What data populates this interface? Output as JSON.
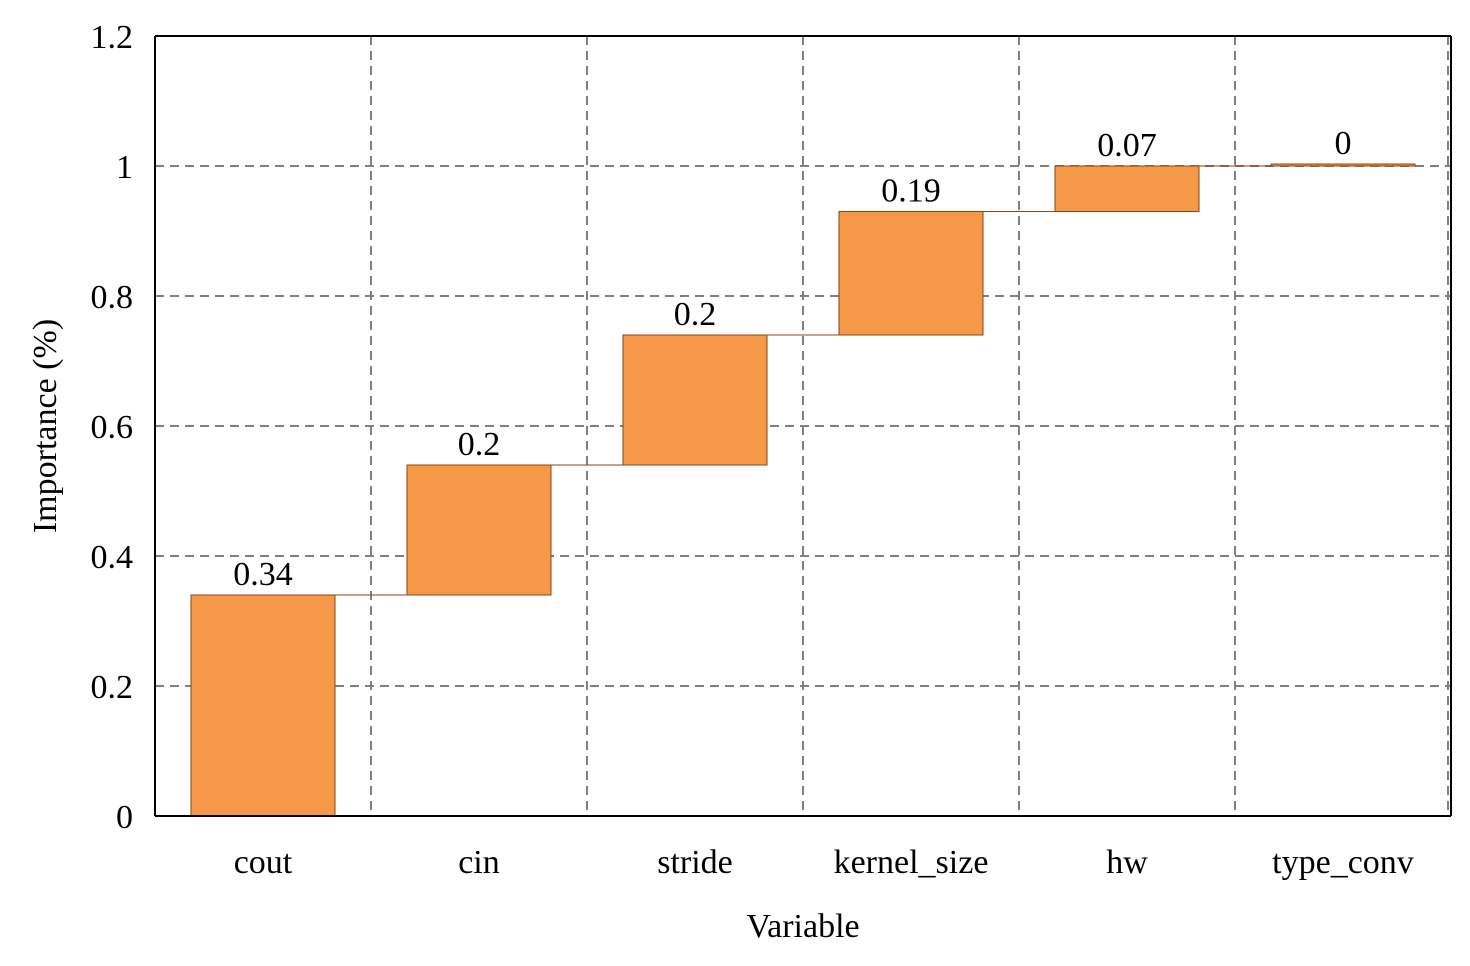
{
  "chart_data": {
    "type": "bar",
    "subtype": "waterfall",
    "categories": [
      "cout",
      "cin",
      "stride",
      "kernel_size",
      "hw",
      "type_conv"
    ],
    "values": [
      0.34,
      0.2,
      0.2,
      0.19,
      0.07,
      0
    ],
    "data_labels": [
      "0.34",
      "0.2",
      "0.2",
      "0.19",
      "0.07",
      "0"
    ],
    "xlabel": "Variable",
    "ylabel": "Importance (%)",
    "ylim": [
      0,
      1.2
    ],
    "yticks": [
      0,
      0.2,
      0.4,
      0.6,
      0.8,
      1,
      1.2
    ],
    "ytick_labels": [
      "0",
      "0.2",
      "0.4",
      "0.6",
      "0.8",
      "1",
      "1.2"
    ],
    "grid": true,
    "grid_style": "dashed",
    "bar_color": "#F59847",
    "bar_edge_color": "#8B4513",
    "connector_color": "#8B4513",
    "grid_color": "#808080"
  }
}
